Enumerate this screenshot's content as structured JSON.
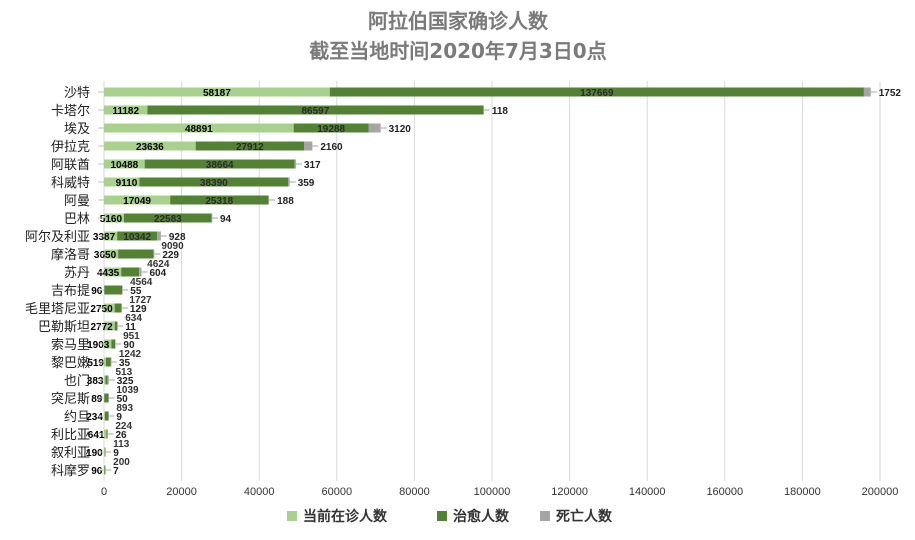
{
  "chart_data": {
    "type": "bar",
    "orientation": "horizontal",
    "stacked": true,
    "title": "阿拉伯国家确诊人数",
    "subtitle": "截至当地时间2020年7月3日0点",
    "categories": [
      "沙特",
      "卡塔尔",
      "埃及",
      "伊拉克",
      "阿联酋",
      "科威特",
      "阿曼",
      "巴林",
      "阿尔及利亚",
      "摩洛哥",
      "苏丹",
      "吉布提",
      "毛里塔尼亚",
      "巴勒斯坦",
      "索马里",
      "黎巴嫩",
      "也门",
      "突尼斯",
      "约旦",
      "利比亚",
      "叙利亚",
      "科摩罗"
    ],
    "series": [
      {
        "name": "当前在诊人数",
        "color": "#a9d18e",
        "values": [
          58187,
          11182,
          48891,
          23636,
          10488,
          9110,
          17049,
          5160,
          3387,
          3650,
          4435,
          96,
          2750,
          2772,
          1903,
          519,
          383,
          89,
          234,
          641,
          190,
          96
        ]
      },
      {
        "name": "治愈人数",
        "color": "#548235",
        "values": [
          137669,
          86597,
          19288,
          27912,
          38664,
          38390,
          25318,
          22583,
          10342,
          9090,
          4624,
          4564,
          1727,
          634,
          951,
          1242,
          513,
          1039,
          893,
          224,
          113,
          200
        ]
      },
      {
        "name": "死亡人数",
        "color": "#a5a5a5",
        "values": [
          1752,
          118,
          3120,
          2160,
          317,
          359,
          188,
          94,
          928,
          229,
          604,
          55,
          129,
          11,
          90,
          35,
          325,
          50,
          9,
          26,
          9,
          7
        ]
      }
    ],
    "xlim": [
      0,
      200000
    ],
    "xticks": [
      "0",
      "20000",
      "40000",
      "60000",
      "80000",
      "100000",
      "120000",
      "140000",
      "160000",
      "180000",
      "200000"
    ],
    "grid": true,
    "legend": "bottom"
  }
}
